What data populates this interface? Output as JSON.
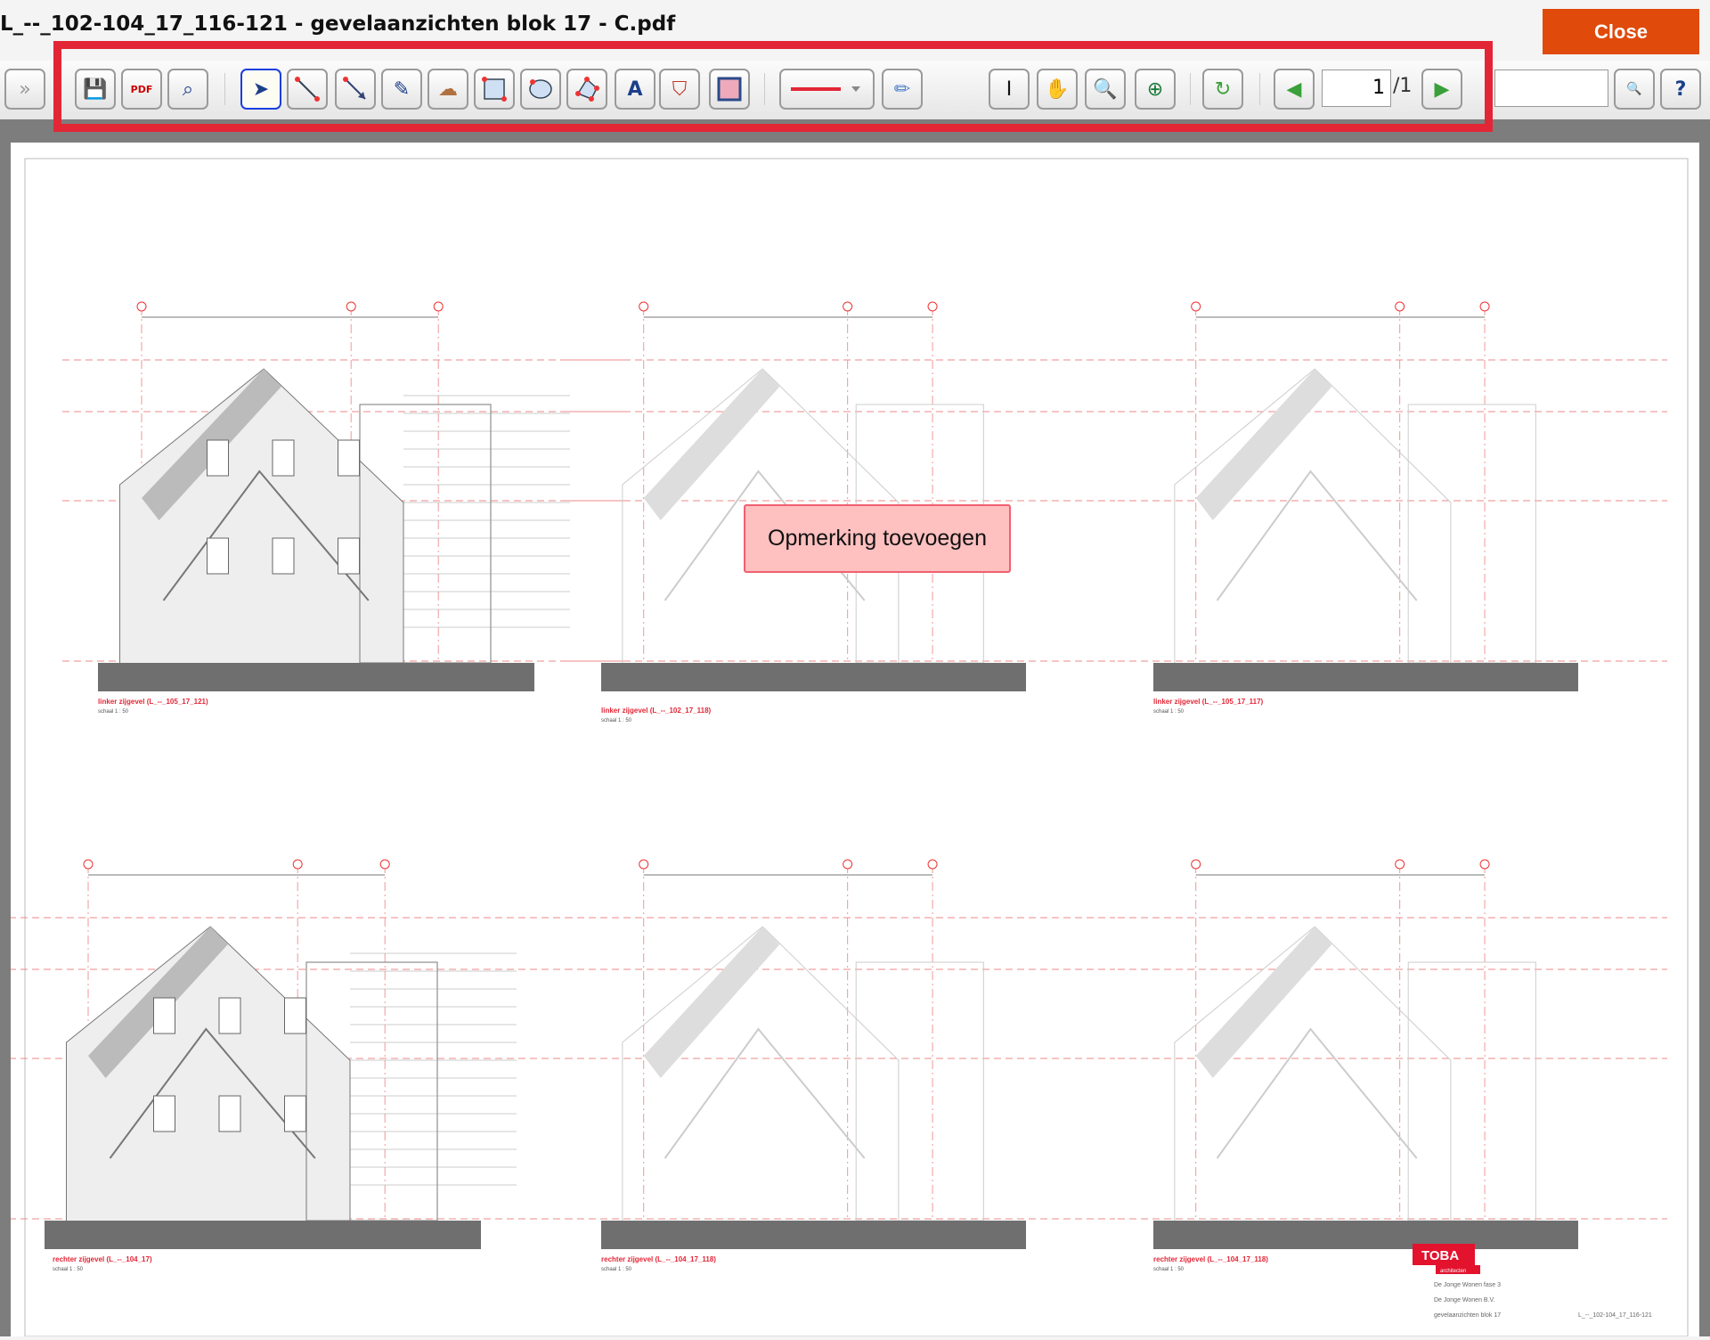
{
  "window": {
    "title": "L_--_102-104_17_116-121 - gevelaanzichten blok 17 - C.pdf",
    "close_label": "Close"
  },
  "toolbar": {
    "expand_icon": "»",
    "page_current": "1",
    "page_total": "/1",
    "search_value": "",
    "line_color": "#e32636",
    "highlight_color": "#e32636"
  },
  "document": {
    "annotation": "Opmerking toevoegen",
    "captions": [
      {
        "title": "linker zijgevel (L_--_105_17_121)",
        "scale": "schaal 1 : 50"
      },
      {
        "title": "linker zijgevel (L_--_102_17_118)",
        "scale": "schaal 1 : 50"
      },
      {
        "title": "linker zijgevel (L_--_105_17_117)",
        "scale": "schaal 1 : 50"
      },
      {
        "title": "rechter zijgevel (L_--_104_17)",
        "scale": "schaal 1 : 50"
      },
      {
        "title": "rechter zijgevel (L_--_104_17_118)",
        "scale": "schaal 1 : 50"
      },
      {
        "title": "rechter zijgevel (L_--_104_17_118)",
        "scale": "schaal 1 : 50"
      }
    ],
    "titleblock": {
      "logo": "TOBA",
      "logo_sub": "architecten",
      "project": "De Jonge Wonen fase 3",
      "client": "De Jonge Wonen B.V.",
      "drawing": "gevelaanzichten blok 17",
      "number": "L_--_102-104_17_116-121"
    }
  }
}
